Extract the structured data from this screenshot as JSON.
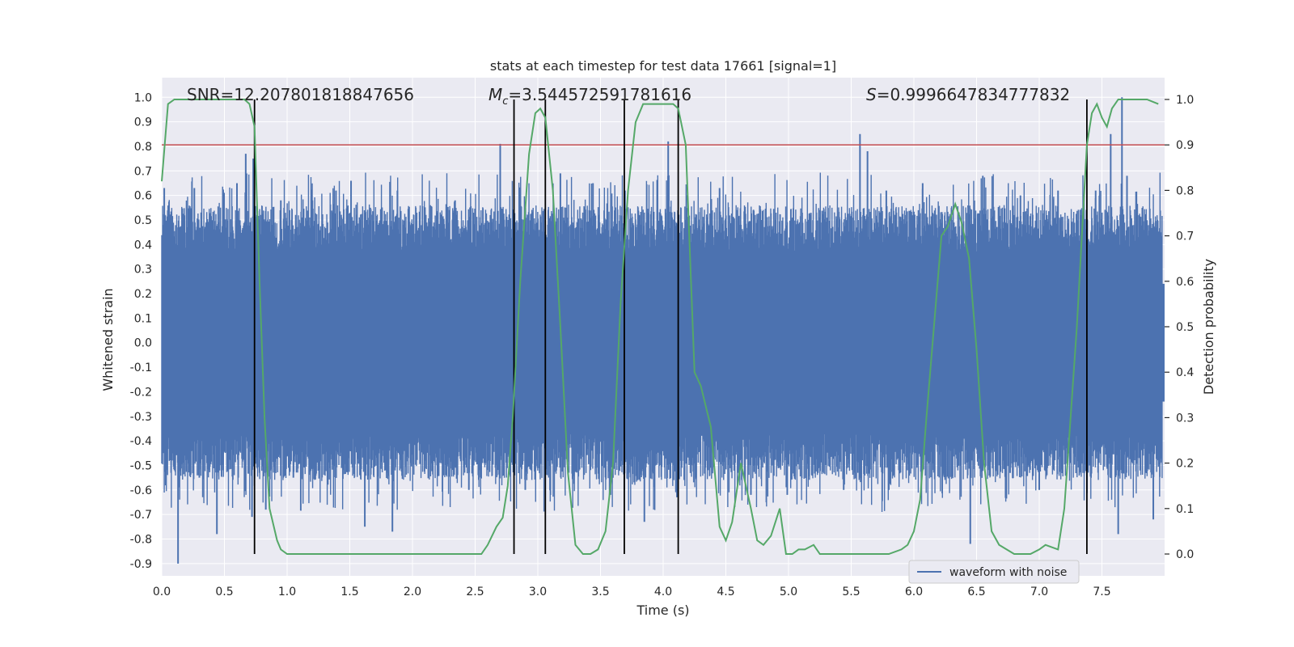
{
  "chart_data": {
    "type": "line",
    "title": "stats at each timestep for test data 17661 [signal=1]",
    "xlabel": "Time (s)",
    "ylabel": "Whitened strain",
    "y2label": "Detection probability",
    "xlim": [
      0.0,
      8.0
    ],
    "ylim": [
      -0.95,
      1.08
    ],
    "y2lim": [
      -0.048,
      1.048
    ],
    "grid": true,
    "legend": {
      "position": "lower-right",
      "entries": [
        "waveform with noise"
      ]
    },
    "x_ticks": [
      "0.0",
      "0.5",
      "1.0",
      "1.5",
      "2.0",
      "2.5",
      "3.0",
      "3.5",
      "4.0",
      "4.5",
      "5.0",
      "5.5",
      "6.0",
      "6.5",
      "7.0",
      "7.5"
    ],
    "y_ticks": [
      "-0.9",
      "-0.8",
      "-0.7",
      "-0.6",
      "-0.5",
      "-0.4",
      "-0.3",
      "-0.2",
      "-0.1",
      "0.0",
      "0.1",
      "0.2",
      "0.3",
      "0.4",
      "0.5",
      "0.6",
      "0.7",
      "0.8",
      "0.9",
      "1.0"
    ],
    "y2_ticks": [
      "0.0",
      "0.1",
      "0.2",
      "0.3",
      "0.4",
      "0.5",
      "0.6",
      "0.7",
      "0.8",
      "0.9",
      "1.0"
    ],
    "annotations": [
      {
        "text": "SNR=12.207801818847656",
        "x": 0.2
      },
      {
        "text": "=3.544572591781616",
        "x": 2.6,
        "math_prefix": "M",
        "math_sub": "c"
      },
      {
        "text": "=0.9996647834777832",
        "x": 5.6,
        "math_prefix": "S"
      }
    ],
    "threshold": {
      "value": 0.9,
      "axis": "y2",
      "color": "#c44e52"
    },
    "vertical_lines": [
      0.74,
      2.81,
      3.06,
      3.69,
      4.12,
      7.38
    ],
    "series": [
      {
        "name": "waveform with noise",
        "axis": "y",
        "color": "#4c72b0",
        "kind": "noise",
        "core_amplitude": 0.38,
        "peaks": [
          {
            "x": 0.02,
            "y": 0.63
          },
          {
            "x": 0.1,
            "y": -0.5
          },
          {
            "x": 0.13,
            "y": -0.9
          },
          {
            "x": 0.26,
            "y": 0.63
          },
          {
            "x": 0.3,
            "y": -0.55
          },
          {
            "x": 0.44,
            "y": -0.78
          },
          {
            "x": 0.6,
            "y": 0.65
          },
          {
            "x": 0.61,
            "y": -0.55
          },
          {
            "x": 0.67,
            "y": 0.77
          },
          {
            "x": 0.73,
            "y": 0.75
          },
          {
            "x": 0.72,
            "y": -0.71
          },
          {
            "x": 0.83,
            "y": -0.68
          },
          {
            "x": 0.95,
            "y": 0.58
          },
          {
            "x": 1.05,
            "y": -0.55
          },
          {
            "x": 1.39,
            "y": 0.62
          },
          {
            "x": 1.51,
            "y": 0.66
          },
          {
            "x": 1.62,
            "y": -0.75
          },
          {
            "x": 1.84,
            "y": -0.77
          },
          {
            "x": 1.88,
            "y": 0.62
          },
          {
            "x": 2.34,
            "y": 0.58
          },
          {
            "x": 2.45,
            "y": -0.6
          },
          {
            "x": 2.7,
            "y": 0.81
          },
          {
            "x": 2.9,
            "y": -0.6
          },
          {
            "x": 3.18,
            "y": 0.69
          },
          {
            "x": 3.44,
            "y": 0.65
          },
          {
            "x": 3.58,
            "y": -0.62
          },
          {
            "x": 3.69,
            "y": -0.6
          },
          {
            "x": 3.85,
            "y": -0.73
          },
          {
            "x": 4.04,
            "y": 0.82
          },
          {
            "x": 4.11,
            "y": -0.63
          },
          {
            "x": 4.45,
            "y": 0.63
          },
          {
            "x": 4.7,
            "y": -0.62
          },
          {
            "x": 4.99,
            "y": -0.62
          },
          {
            "x": 5.44,
            "y": -0.6
          },
          {
            "x": 5.57,
            "y": 0.85
          },
          {
            "x": 5.63,
            "y": 0.78
          },
          {
            "x": 5.78,
            "y": 0.62
          },
          {
            "x": 5.8,
            "y": -0.6
          },
          {
            "x": 6.07,
            "y": 0.65
          },
          {
            "x": 6.3,
            "y": 0.55
          },
          {
            "x": 6.45,
            "y": -0.82
          },
          {
            "x": 6.55,
            "y": 0.68
          },
          {
            "x": 6.85,
            "y": 0.6
          },
          {
            "x": 7.0,
            "y": -0.6
          },
          {
            "x": 7.15,
            "y": 0.62
          },
          {
            "x": 7.45,
            "y": 0.62
          },
          {
            "x": 7.57,
            "y": 0.85
          },
          {
            "x": 7.63,
            "y": -0.78
          },
          {
            "x": 7.66,
            "y": 1.0
          },
          {
            "x": 7.7,
            "y": 0.68
          },
          {
            "x": 7.91,
            "y": -0.72
          }
        ]
      },
      {
        "name": "",
        "axis": "y2",
        "color": "#55a868",
        "x": [
          0.0,
          0.05,
          0.1,
          0.2,
          0.3,
          0.4,
          0.5,
          0.6,
          0.66,
          0.7,
          0.74,
          0.78,
          0.82,
          0.86,
          0.92,
          0.95,
          1.0,
          1.1,
          1.2,
          1.3,
          1.4,
          1.5,
          1.6,
          1.7,
          1.8,
          1.9,
          2.0,
          2.2,
          2.4,
          2.5,
          2.55,
          2.6,
          2.67,
          2.72,
          2.76,
          2.8,
          2.86,
          2.93,
          2.98,
          3.02,
          3.06,
          3.12,
          3.18,
          3.24,
          3.3,
          3.36,
          3.42,
          3.48,
          3.54,
          3.6,
          3.66,
          3.72,
          3.78,
          3.84,
          3.9,
          3.96,
          4.02,
          4.08,
          4.12,
          4.18,
          4.25,
          4.3,
          4.38,
          4.45,
          4.5,
          4.55,
          4.62,
          4.7,
          4.75,
          4.8,
          4.86,
          4.93,
          4.98,
          5.03,
          5.08,
          5.13,
          5.2,
          5.25,
          5.3,
          5.4,
          5.5,
          5.6,
          5.7,
          5.8,
          5.9,
          5.95,
          6.0,
          6.05,
          6.1,
          6.16,
          6.22,
          6.27,
          6.33,
          6.38,
          6.44,
          6.5,
          6.56,
          6.62,
          6.68,
          6.74,
          6.8,
          6.86,
          6.93,
          7.0,
          7.05,
          7.15,
          7.2,
          7.25,
          7.3,
          7.34,
          7.38,
          7.42,
          7.46,
          7.5,
          7.54,
          7.58,
          7.63,
          7.7,
          7.78,
          7.86,
          7.95
        ],
        "y": [
          0.82,
          0.99,
          1.0,
          1.0,
          1.0,
          1.0,
          1.0,
          1.0,
          1.0,
          0.99,
          0.94,
          0.6,
          0.3,
          0.1,
          0.03,
          0.01,
          0.0,
          0.0,
          0.0,
          0.0,
          0.0,
          0.0,
          0.0,
          0.0,
          0.0,
          0.0,
          0.0,
          0.0,
          0.0,
          0.0,
          0.0,
          0.02,
          0.06,
          0.08,
          0.15,
          0.3,
          0.6,
          0.88,
          0.97,
          0.98,
          0.96,
          0.8,
          0.5,
          0.18,
          0.02,
          0.0,
          0.0,
          0.01,
          0.05,
          0.2,
          0.55,
          0.8,
          0.95,
          0.99,
          0.99,
          0.99,
          0.99,
          0.99,
          0.98,
          0.9,
          0.4,
          0.37,
          0.28,
          0.06,
          0.03,
          0.07,
          0.2,
          0.1,
          0.03,
          0.02,
          0.04,
          0.1,
          0.0,
          0.0,
          0.01,
          0.01,
          0.02,
          0.0,
          0.0,
          0.0,
          0.0,
          0.0,
          0.0,
          0.0,
          0.01,
          0.02,
          0.05,
          0.12,
          0.3,
          0.5,
          0.7,
          0.72,
          0.77,
          0.73,
          0.65,
          0.45,
          0.2,
          0.05,
          0.02,
          0.01,
          0.0,
          0.0,
          0.0,
          0.01,
          0.02,
          0.01,
          0.1,
          0.3,
          0.5,
          0.7,
          0.9,
          0.97,
          0.99,
          0.96,
          0.94,
          0.98,
          1.0,
          1.0,
          1.0,
          1.0,
          0.99
        ]
      }
    ]
  }
}
